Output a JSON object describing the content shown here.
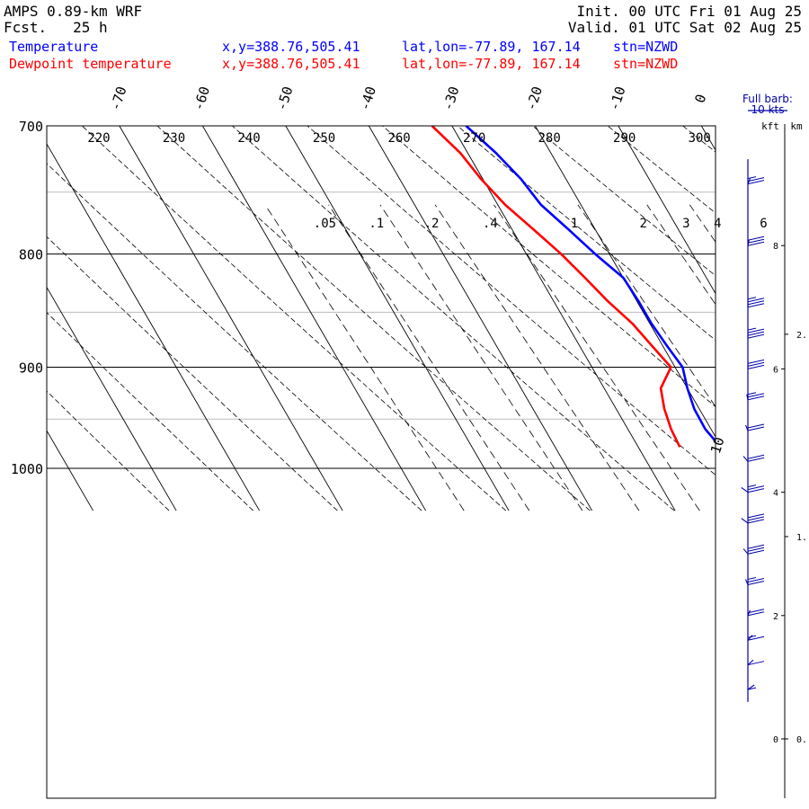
{
  "header": {
    "model": "AMPS 0.89-km WRF",
    "fcst_label": "Fcst.",
    "fcst_hours": "25 h",
    "init": "Init. 00 UTC Fri 01 Aug 25",
    "valid": "Valid. 01 UTC Sat 02 Aug 25",
    "temp_label": "Temperature",
    "dew_label": "Dewpoint temperature",
    "xy": "x,y=388.76,505.41",
    "latlon": "lat,lon=-77.89, 167.14",
    "stn": "stn=NZWD"
  },
  "barb_legend": {
    "title": "Full barb:",
    "value": "10 kts",
    "kft_label": "kft",
    "km_label": "km"
  },
  "colors": {
    "temperature": "#0000ff",
    "dewpoint": "#ff0000",
    "axes": "#000000",
    "isobar_minor": "#bbbbbb"
  },
  "chart_data": {
    "type": "line",
    "diagram": "skew-T log-P",
    "y_axis": {
      "quantity": "pressure",
      "unit": "hPa",
      "range": [
        1045,
        700
      ],
      "scale": "log",
      "ticks": [
        700,
        800,
        900,
        1000
      ]
    },
    "isotherm_labels_C": [
      "-70",
      "-60",
      "-50",
      "-40",
      "-30",
      "-20",
      "-10",
      "0",
      "10"
    ],
    "dry_adiabat_labels_K": [
      "220",
      "230",
      "240",
      "250",
      "260",
      "270",
      "280",
      "290",
      "300"
    ],
    "mixing_ratio_labels": [
      ".05",
      ".1",
      ".2",
      ".4",
      "1",
      "2",
      "3",
      "4",
      "6"
    ],
    "series": [
      {
        "name": "Temperature",
        "color": "#0000ff",
        "points": [
          {
            "p": 978,
            "t": -20.1
          },
          {
            "p": 960,
            "t": -20.7
          },
          {
            "p": 940,
            "t": -20.6
          },
          {
            "p": 920,
            "t": -20.0
          },
          {
            "p": 900,
            "t": -19.1
          },
          {
            "p": 880,
            "t": -19.5
          },
          {
            "p": 860,
            "t": -19.8
          },
          {
            "p": 840,
            "t": -19.8
          },
          {
            "p": 820,
            "t": -20.0
          },
          {
            "p": 800,
            "t": -21.7
          },
          {
            "p": 780,
            "t": -23.2
          },
          {
            "p": 760,
            "t": -24.8
          },
          {
            "p": 740,
            "t": -25.4
          },
          {
            "p": 720,
            "t": -26.6
          },
          {
            "p": 700,
            "t": -28.3
          }
        ]
      },
      {
        "name": "Dewpoint temperature",
        "color": "#ff0000",
        "points": [
          {
            "p": 978,
            "t": -25.0
          },
          {
            "p": 960,
            "t": -24.8
          },
          {
            "p": 940,
            "t": -24.2
          },
          {
            "p": 920,
            "t": -23.2
          },
          {
            "p": 900,
            "t": -20.5
          },
          {
            "p": 880,
            "t": -21.3
          },
          {
            "p": 860,
            "t": -22.1
          },
          {
            "p": 840,
            "t": -23.5
          },
          {
            "p": 820,
            "t": -24.6
          },
          {
            "p": 800,
            "t": -25.8
          },
          {
            "p": 780,
            "t": -27.4
          },
          {
            "p": 760,
            "t": -29.1
          },
          {
            "p": 740,
            "t": -30.2
          },
          {
            "p": 720,
            "t": -30.9
          },
          {
            "p": 700,
            "t": -32.4
          }
        ]
      }
    ],
    "wind_barbs": [
      {
        "kft": 0.8,
        "dir": 210,
        "kts": 8
      },
      {
        "kft": 1.2,
        "dir": 205,
        "kts": 12
      },
      {
        "kft": 1.6,
        "dir": 200,
        "kts": 15
      },
      {
        "kft": 2.0,
        "dir": 190,
        "kts": 20
      },
      {
        "kft": 2.5,
        "dir": 170,
        "kts": 25
      },
      {
        "kft": 3.0,
        "dir": 160,
        "kts": 30
      },
      {
        "kft": 3.5,
        "dir": 150,
        "kts": 30
      },
      {
        "kft": 4.0,
        "dir": 150,
        "kts": 25
      },
      {
        "kft": 4.5,
        "dir": 160,
        "kts": 20
      },
      {
        "kft": 5.0,
        "dir": 170,
        "kts": 20
      },
      {
        "kft": 5.5,
        "dir": 175,
        "kts": 25
      },
      {
        "kft": 6.0,
        "dir": 180,
        "kts": 30
      },
      {
        "kft": 6.5,
        "dir": 180,
        "kts": 35
      },
      {
        "kft": 7.0,
        "dir": 180,
        "kts": 35
      },
      {
        "kft": 8.0,
        "dir": 185,
        "kts": 30
      },
      {
        "kft": 9.0,
        "dir": 190,
        "kts": 25
      }
    ],
    "height_ticks_kft": [
      "0",
      "2",
      "4",
      "6",
      "8"
    ],
    "height_ticks_km": [
      "0.",
      "1.",
      "2."
    ]
  }
}
